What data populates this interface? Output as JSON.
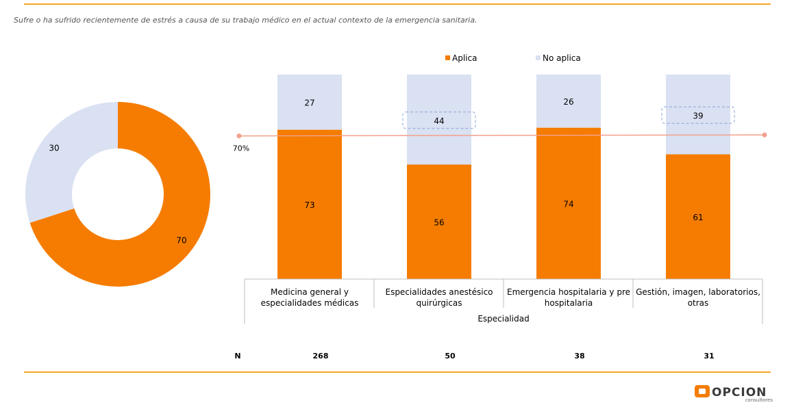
{
  "subtitle": "Sufre o ha sufrido recientemente de estrés a causa de su trabajo médico en el actual contexto de la emergencia sanitaria.",
  "colors": {
    "aplica": "#f57c00",
    "no_aplica": "#d9e1f2",
    "reference_line": "#f4a08c",
    "rule": "#f5a623"
  },
  "chart_data": [
    {
      "type": "pie",
      "donut": true,
      "labels": [
        "Aplica",
        "No aplica"
      ],
      "values": [
        70,
        30
      ]
    },
    {
      "type": "bar",
      "stacked": true,
      "categories": [
        [
          "Medicina general y",
          "especialidades médicas"
        ],
        [
          "Especialidades anestésico",
          "quirúrgicas"
        ],
        [
          "Emergencia hospitalaria y pre",
          "hospitalaria"
        ],
        [
          "Gestión, imagen, laboratorios,",
          "otras"
        ]
      ],
      "series": [
        {
          "name": "Aplica",
          "values": [
            73,
            56,
            74,
            61
          ]
        },
        {
          "name": "No aplica",
          "values": [
            27,
            44,
            26,
            39
          ]
        }
      ],
      "ylim": [
        0,
        100
      ],
      "xlabel": "Especialidad",
      "reference_line": {
        "value": 70,
        "label": "70%"
      },
      "legend": "top",
      "n_label": "N",
      "n_values": [
        "268",
        "50",
        "38",
        "31"
      ]
    }
  ],
  "logo": {
    "text": "OPCION",
    "subtext": "consultores"
  }
}
